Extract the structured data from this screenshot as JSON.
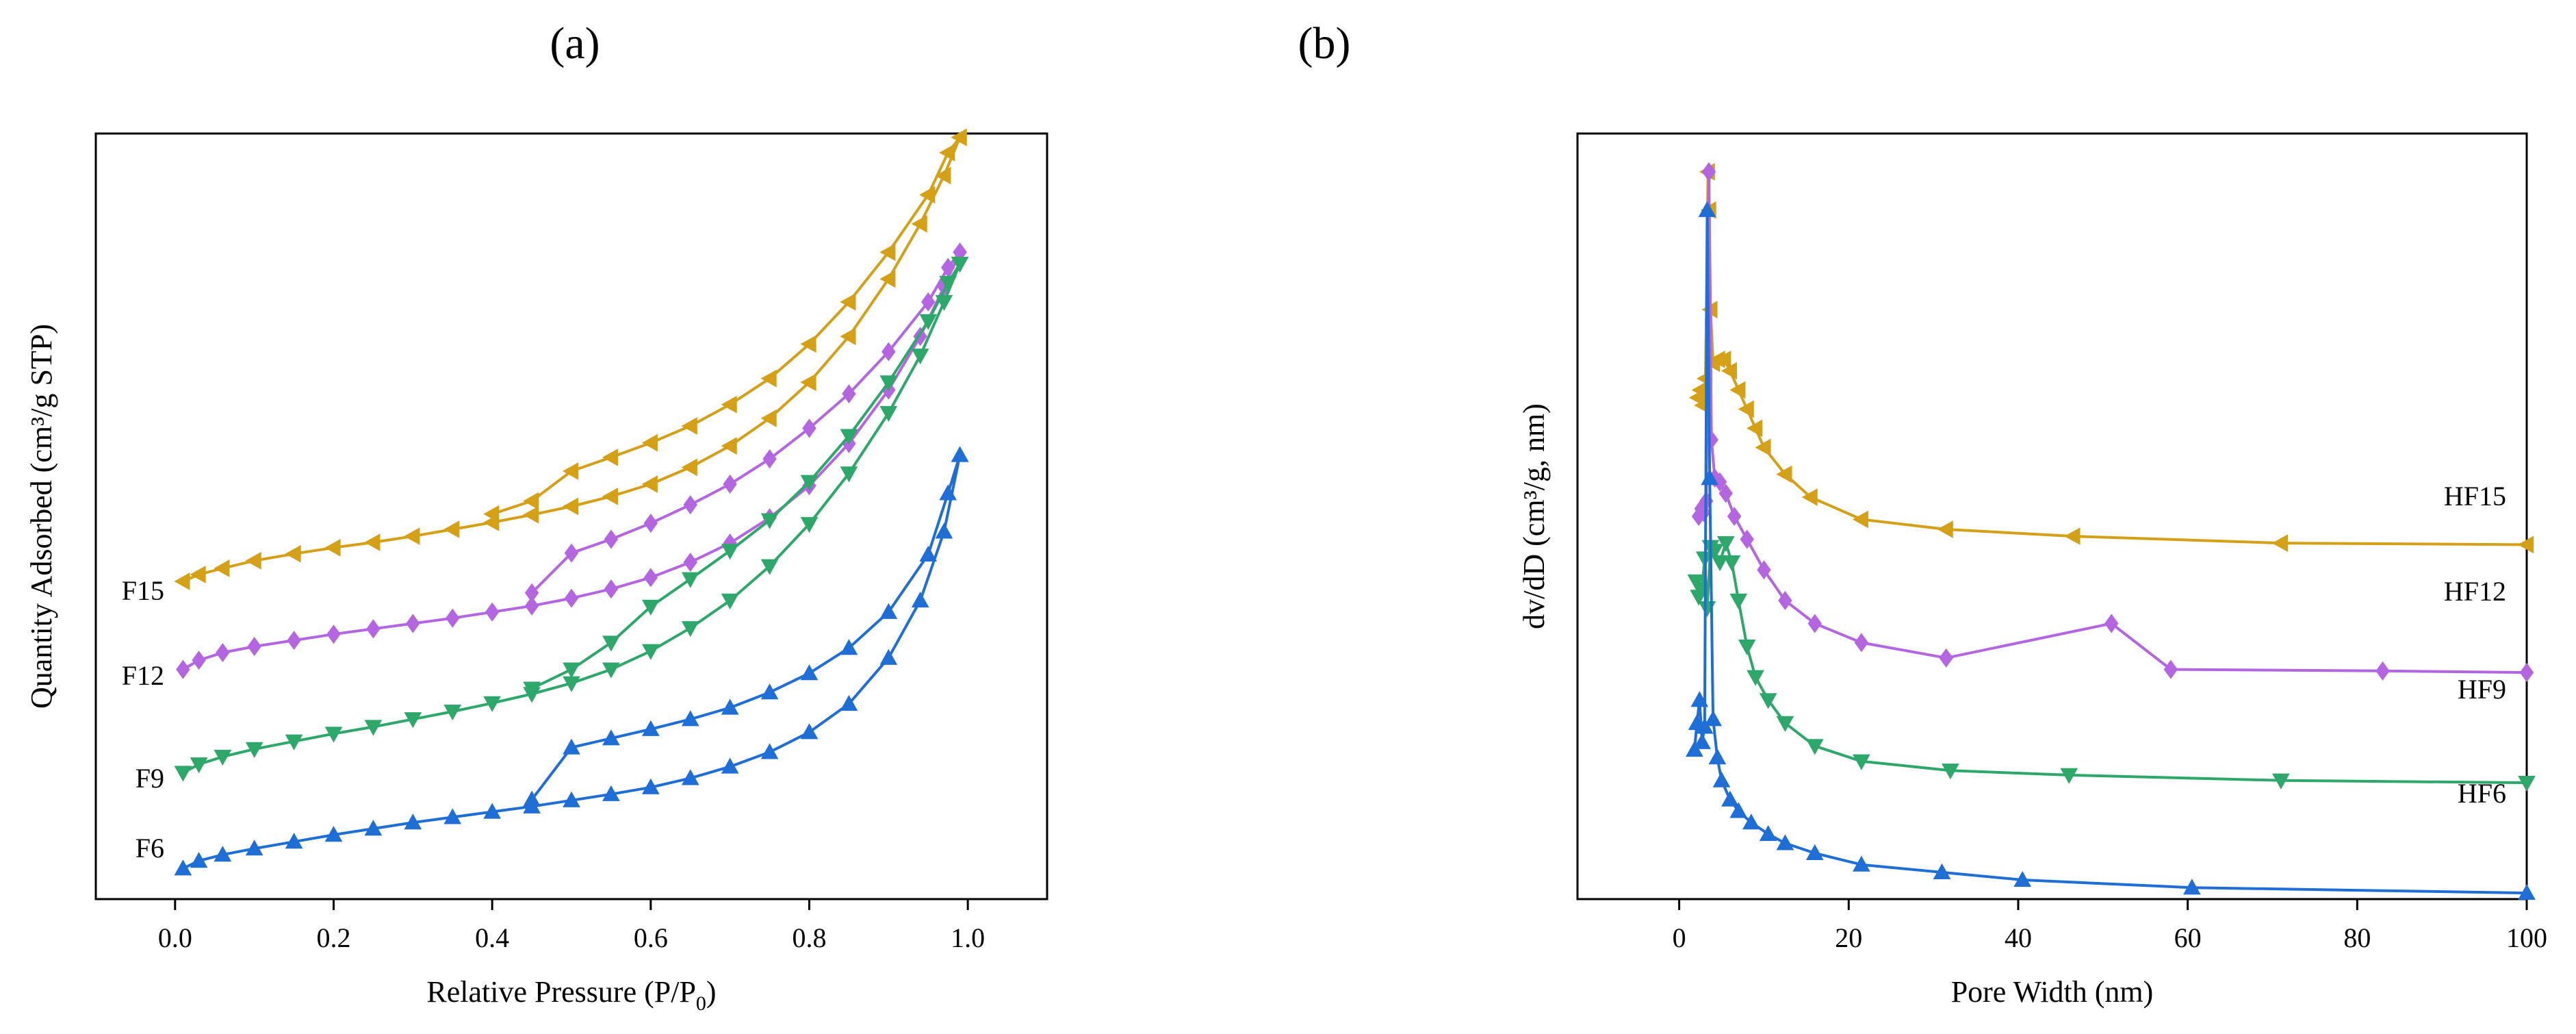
{
  "panel_labels": [
    "(a)",
    "(b)"
  ],
  "colors": {
    "F15": "#d4a017",
    "F12": "#b366e0",
    "F9": "#2ea86a",
    "F6": "#1f6ed6",
    "axis": "#000000"
  },
  "chart_data": [
    {
      "id": "a",
      "type": "line",
      "title": "(a)",
      "xlabel": "Relative Pressure (P/P0)",
      "xlabel_main": "Relative Pressure (P/P",
      "xlabel_sub": "0",
      "xlabel_end": ")",
      "ylabel": "Quantity Adsorbed (cm³/g STP)",
      "xlim": [
        -0.1,
        1.1
      ],
      "ylim": [
        0,
        100
      ],
      "yticks_shown": false,
      "xticks": [
        0.0,
        0.2,
        0.4,
        0.6,
        0.8,
        1.0
      ],
      "xtick_labels": [
        "0.0",
        "0.2",
        "0.4",
        "0.6",
        "0.8",
        "1.0"
      ],
      "series": [
        {
          "name": "F15",
          "label": "F15",
          "color": "#d4a017",
          "marker": "triangle-left",
          "adsorption": [
            [
              0.01,
              41.5
            ],
            [
              0.03,
              42.4
            ],
            [
              0.06,
              43.2
            ],
            [
              0.1,
              44.2
            ],
            [
              0.15,
              45.1
            ],
            [
              0.2,
              45.9
            ],
            [
              0.25,
              46.6
            ],
            [
              0.3,
              47.4
            ],
            [
              0.35,
              48.3
            ],
            [
              0.4,
              49.2
            ],
            [
              0.45,
              50.2
            ],
            [
              0.5,
              51.3
            ],
            [
              0.55,
              52.6
            ],
            [
              0.6,
              54.2
            ],
            [
              0.65,
              56.4
            ],
            [
              0.7,
              59.2
            ],
            [
              0.75,
              62.8
            ],
            [
              0.8,
              67.5
            ],
            [
              0.85,
              73.5
            ],
            [
              0.9,
              81.0
            ],
            [
              0.94,
              88.2
            ],
            [
              0.97,
              94.5
            ],
            [
              0.99,
              99.5
            ]
          ],
          "desorption": [
            [
              0.99,
              99.5
            ],
            [
              0.975,
              97.5
            ],
            [
              0.95,
              92.0
            ],
            [
              0.9,
              84.5
            ],
            [
              0.85,
              78.0
            ],
            [
              0.8,
              72.5
            ],
            [
              0.75,
              68.0
            ],
            [
              0.7,
              64.6
            ],
            [
              0.65,
              61.8
            ],
            [
              0.6,
              59.6
            ],
            [
              0.55,
              57.7
            ],
            [
              0.5,
              55.9
            ],
            [
              0.45,
              52.0
            ],
            [
              0.4,
              50.3
            ]
          ]
        },
        {
          "name": "F12",
          "label": "F12",
          "color": "#b366e0",
          "marker": "diamond",
          "adsorption": [
            [
              0.01,
              30.0
            ],
            [
              0.03,
              31.2
            ],
            [
              0.06,
              32.2
            ],
            [
              0.1,
              33.0
            ],
            [
              0.15,
              33.8
            ],
            [
              0.2,
              34.6
            ],
            [
              0.25,
              35.3
            ],
            [
              0.3,
              36.0
            ],
            [
              0.35,
              36.7
            ],
            [
              0.4,
              37.5
            ],
            [
              0.45,
              38.3
            ],
            [
              0.5,
              39.3
            ],
            [
              0.55,
              40.5
            ],
            [
              0.6,
              42.0
            ],
            [
              0.65,
              44.0
            ],
            [
              0.7,
              46.5
            ],
            [
              0.75,
              49.8
            ],
            [
              0.8,
              54.0
            ],
            [
              0.85,
              59.5
            ],
            [
              0.9,
              66.5
            ],
            [
              0.94,
              73.5
            ],
            [
              0.97,
              80.0
            ],
            [
              0.99,
              84.5
            ]
          ],
          "desorption": [
            [
              0.99,
              84.5
            ],
            [
              0.975,
              82.5
            ],
            [
              0.95,
              78.0
            ],
            [
              0.9,
              71.5
            ],
            [
              0.85,
              66.0
            ],
            [
              0.8,
              61.5
            ],
            [
              0.75,
              57.5
            ],
            [
              0.7,
              54.2
            ],
            [
              0.65,
              51.5
            ],
            [
              0.6,
              49.1
            ],
            [
              0.55,
              47.0
            ],
            [
              0.5,
              45.2
            ],
            [
              0.45,
              40.0
            ]
          ]
        },
        {
          "name": "F9",
          "label": "F9",
          "color": "#2ea86a",
          "marker": "triangle-down",
          "adsorption": [
            [
              0.01,
              16.5
            ],
            [
              0.03,
              17.6
            ],
            [
              0.06,
              18.6
            ],
            [
              0.1,
              19.6
            ],
            [
              0.15,
              20.6
            ],
            [
              0.2,
              21.6
            ],
            [
              0.25,
              22.5
            ],
            [
              0.3,
              23.5
            ],
            [
              0.35,
              24.5
            ],
            [
              0.4,
              25.6
            ],
            [
              0.45,
              26.8
            ],
            [
              0.5,
              28.2
            ],
            [
              0.55,
              30.0
            ],
            [
              0.6,
              32.4
            ],
            [
              0.65,
              35.4
            ],
            [
              0.7,
              39.0
            ],
            [
              0.75,
              43.5
            ],
            [
              0.8,
              49.0
            ],
            [
              0.85,
              55.6
            ],
            [
              0.9,
              63.5
            ],
            [
              0.94,
              71.0
            ],
            [
              0.97,
              78.0
            ],
            [
              0.99,
              83.0
            ]
          ],
          "desorption": [
            [
              0.99,
              83.0
            ],
            [
              0.975,
              80.5
            ],
            [
              0.95,
              75.5
            ],
            [
              0.9,
              67.5
            ],
            [
              0.85,
              60.5
            ],
            [
              0.8,
              54.5
            ],
            [
              0.75,
              49.5
            ],
            [
              0.7,
              45.5
            ],
            [
              0.65,
              41.8
            ],
            [
              0.6,
              38.2
            ],
            [
              0.55,
              33.5
            ],
            [
              0.5,
              30.0
            ],
            [
              0.45,
              27.5
            ]
          ]
        },
        {
          "name": "F6",
          "label": "F6",
          "color": "#1f6ed6",
          "marker": "triangle-up",
          "adsorption": [
            [
              0.01,
              4.0
            ],
            [
              0.03,
              5.0
            ],
            [
              0.06,
              5.8
            ],
            [
              0.1,
              6.6
            ],
            [
              0.15,
              7.5
            ],
            [
              0.2,
              8.4
            ],
            [
              0.25,
              9.2
            ],
            [
              0.3,
              10.0
            ],
            [
              0.35,
              10.7
            ],
            [
              0.4,
              11.4
            ],
            [
              0.45,
              12.1
            ],
            [
              0.5,
              12.9
            ],
            [
              0.55,
              13.7
            ],
            [
              0.6,
              14.6
            ],
            [
              0.65,
              15.8
            ],
            [
              0.7,
              17.3
            ],
            [
              0.75,
              19.2
            ],
            [
              0.8,
              21.8
            ],
            [
              0.85,
              25.5
            ],
            [
              0.9,
              31.5
            ],
            [
              0.94,
              39.0
            ],
            [
              0.97,
              48.0
            ],
            [
              0.99,
              58.0
            ]
          ],
          "desorption": [
            [
              0.99,
              58.0
            ],
            [
              0.975,
              53.0
            ],
            [
              0.95,
              45.0
            ],
            [
              0.9,
              37.5
            ],
            [
              0.85,
              32.8
            ],
            [
              0.8,
              29.5
            ],
            [
              0.75,
              27.0
            ],
            [
              0.7,
              25.0
            ],
            [
              0.65,
              23.5
            ],
            [
              0.6,
              22.2
            ],
            [
              0.55,
              21.0
            ],
            [
              0.5,
              19.8
            ],
            [
              0.45,
              13.0
            ]
          ]
        }
      ]
    },
    {
      "id": "b",
      "type": "line",
      "title": "(b)",
      "xlabel": "Pore Width (nm)",
      "ylabel": "dv/dD (cm³/g, nm)",
      "xlim": [
        -12,
        100
      ],
      "ylim": [
        0,
        100
      ],
      "yticks_shown": false,
      "xticks": [
        0,
        20,
        40,
        60,
        80,
        100
      ],
      "xtick_labels": [
        "0",
        "20",
        "40",
        "60",
        "80",
        "100"
      ],
      "series": [
        {
          "name": "HF15",
          "label": "HF15",
          "color": "#d4a017",
          "marker": "triangle-left",
          "points": [
            [
              2.2,
              65.5
            ],
            [
              2.5,
              66.5
            ],
            [
              2.8,
              64.5
            ],
            [
              3.1,
              68.0
            ],
            [
              3.4,
              95.0
            ],
            [
              3.55,
              90.0
            ],
            [
              3.7,
              77.0
            ],
            [
              4.0,
              70.0
            ],
            [
              4.6,
              70.5
            ],
            [
              5.3,
              70.5
            ],
            [
              6.0,
              69.0
            ],
            [
              7.0,
              66.5
            ],
            [
              8.0,
              64.0
            ],
            [
              9.0,
              61.5
            ],
            [
              10.0,
              59.0
            ],
            [
              12.5,
              55.5
            ],
            [
              15.5,
              52.5
            ],
            [
              21.5,
              49.6
            ],
            [
              31.5,
              48.3
            ],
            [
              46.5,
              47.4
            ],
            [
              71.0,
              46.5
            ],
            [
              100.0,
              46.3
            ]
          ]
        },
        {
          "name": "HF12",
          "label": "HF12",
          "color": "#b366e0",
          "marker": "diamond",
          "points": [
            [
              2.3,
              50.0
            ],
            [
              2.6,
              51.0
            ],
            [
              2.9,
              50.5
            ],
            [
              3.2,
              52.0
            ],
            [
              3.5,
              95.0
            ],
            [
              3.8,
              60.0
            ],
            [
              4.2,
              55.0
            ],
            [
              4.8,
              54.5
            ],
            [
              5.5,
              53.0
            ],
            [
              6.5,
              50.0
            ],
            [
              8.0,
              47.0
            ],
            [
              10.0,
              43.0
            ],
            [
              12.5,
              39.0
            ],
            [
              16.0,
              36.0
            ],
            [
              21.5,
              33.5
            ],
            [
              31.5,
              31.5
            ],
            [
              51.0,
              36.0
            ],
            [
              58.0,
              30.0
            ],
            [
              83.0,
              29.8
            ],
            [
              100.0,
              29.6
            ]
          ]
        },
        {
          "name": "HF9",
          "label": "HF9",
          "color": "#2ea86a",
          "marker": "triangle-down",
          "points": [
            [
              2.0,
              41.5
            ],
            [
              2.3,
              39.5
            ],
            [
              2.7,
              40.5
            ],
            [
              3.0,
              44.5
            ],
            [
              3.3,
              38.0
            ],
            [
              3.7,
              46.0
            ],
            [
              4.2,
              45.5
            ],
            [
              4.8,
              44.0
            ],
            [
              5.5,
              46.5
            ],
            [
              6.2,
              44.0
            ],
            [
              7.0,
              39.0
            ],
            [
              8.0,
              33.0
            ],
            [
              9.0,
              29.0
            ],
            [
              10.5,
              26.0
            ],
            [
              12.5,
              23.0
            ],
            [
              16.0,
              20.0
            ],
            [
              21.5,
              18.0
            ],
            [
              32.0,
              16.8
            ],
            [
              46.0,
              16.2
            ],
            [
              71.0,
              15.5
            ],
            [
              100.0,
              15.2
            ]
          ]
        },
        {
          "name": "HF6",
          "label": "HF6",
          "color": "#1f6ed6",
          "marker": "triangle-up",
          "points": [
            [
              1.8,
              19.5
            ],
            [
              2.1,
              23.0
            ],
            [
              2.4,
              26.0
            ],
            [
              2.7,
              20.5
            ],
            [
              3.0,
              22.5
            ],
            [
              3.3,
              90.0
            ],
            [
              3.6,
              55.0
            ],
            [
              4.0,
              23.5
            ],
            [
              4.5,
              18.5
            ],
            [
              5.0,
              15.5
            ],
            [
              6.0,
              13.0
            ],
            [
              7.0,
              11.5
            ],
            [
              8.5,
              10.0
            ],
            [
              10.5,
              8.5
            ],
            [
              12.5,
              7.3
            ],
            [
              16.0,
              6.0
            ],
            [
              21.5,
              4.5
            ],
            [
              31.0,
              3.5
            ],
            [
              40.5,
              2.5
            ],
            [
              60.5,
              1.5
            ],
            [
              100.0,
              0.8
            ]
          ]
        }
      ]
    }
  ]
}
